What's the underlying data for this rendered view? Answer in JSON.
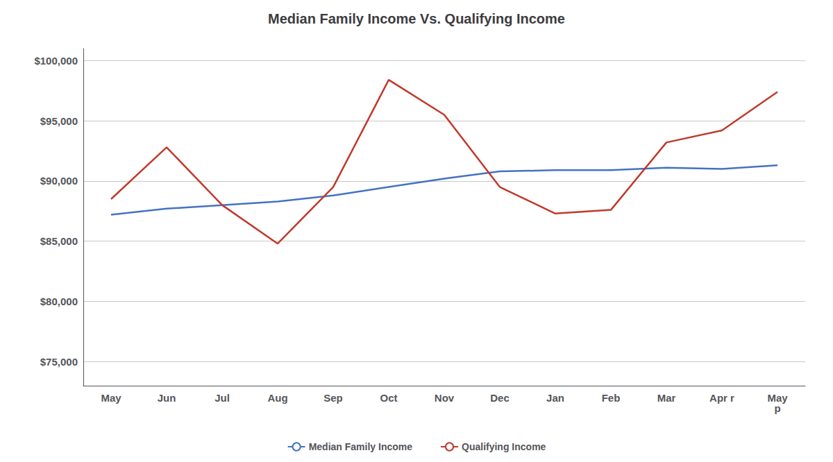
{
  "chart_data": {
    "type": "line",
    "title": "Median Family Income Vs. Qualifying Income",
    "categories": [
      "May",
      "Jun",
      "Jul",
      "Aug",
      "Sep",
      "Oct",
      "Nov",
      "Dec",
      "Jan",
      "Feb",
      "Mar",
      "Apr r",
      "May\np"
    ],
    "series": [
      {
        "name": "Median Family Income",
        "color": "#4472C4",
        "values": [
          87200,
          87700,
          88000,
          88300,
          88800,
          89500,
          90200,
          90800,
          90900,
          90900,
          91100,
          91000,
          91300
        ]
      },
      {
        "name": "Qualifying Income",
        "color": "#C0392B",
        "values": [
          88500,
          92800,
          88000,
          84800,
          89500,
          98400,
          95500,
          89500,
          87300,
          87600,
          93200,
          94200,
          97400
        ]
      }
    ],
    "ylim": [
      73000,
      101000
    ],
    "yticks": [
      {
        "value": 75000,
        "label": "$75,000"
      },
      {
        "value": 80000,
        "label": "$80,000"
      },
      {
        "value": 85000,
        "label": "$85,000"
      },
      {
        "value": 90000,
        "label": "$90,000"
      },
      {
        "value": 95000,
        "label": "$95,000"
      },
      {
        "value": 100000,
        "label": "$100,000"
      }
    ],
    "grid": true,
    "legend": "bottom"
  }
}
